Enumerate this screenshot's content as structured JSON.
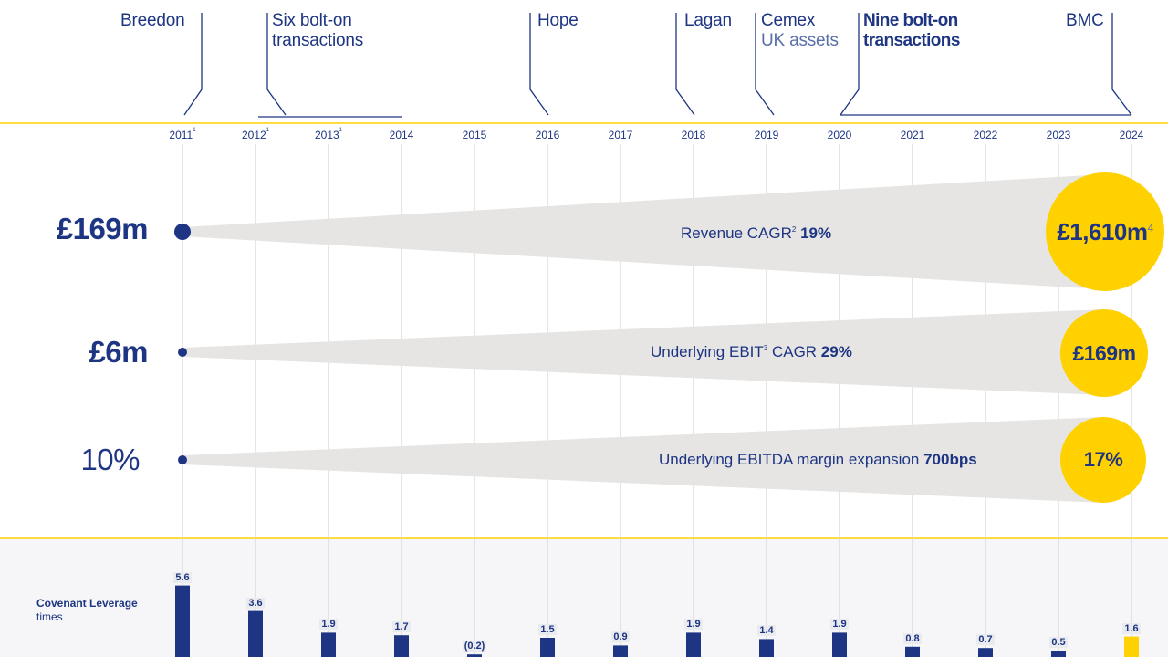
{
  "milestones": [
    {
      "title": "Breedon",
      "sub": ""
    },
    {
      "title": "Six bolt-on transactions",
      "sub": ""
    },
    {
      "title": "Hope",
      "sub": ""
    },
    {
      "title": "Lagan",
      "sub": ""
    },
    {
      "title": "Cemex",
      "sub": "UK assets"
    },
    {
      "title": "Nine bolt-on transactions",
      "sub": ""
    },
    {
      "title": "BMC",
      "sub": ""
    }
  ],
  "milestone_lines": {
    "six_l1": "Six bolt-on",
    "six_l2": "transactions",
    "nine_l1": "Nine bolt-on",
    "nine_l2": "transactions"
  },
  "years": [
    {
      "label": "2011",
      "note": "1"
    },
    {
      "label": "2012",
      "note": "1"
    },
    {
      "label": "2013",
      "note": "1"
    },
    {
      "label": "2014",
      "note": ""
    },
    {
      "label": "2015",
      "note": ""
    },
    {
      "label": "2016",
      "note": ""
    },
    {
      "label": "2017",
      "note": ""
    },
    {
      "label": "2018",
      "note": ""
    },
    {
      "label": "2019",
      "note": ""
    },
    {
      "label": "2020",
      "note": ""
    },
    {
      "label": "2021",
      "note": ""
    },
    {
      "label": "2022",
      "note": ""
    },
    {
      "label": "2023",
      "note": ""
    },
    {
      "label": "2024",
      "note": ""
    }
  ],
  "metrics": {
    "revenue": {
      "start": "£169m",
      "caption_pre": "Revenue CAGR",
      "caption_note": "2",
      "caption_value": "19%",
      "end": "£1,610m",
      "end_note": "4"
    },
    "ebit": {
      "start": "£6m",
      "caption_pre": "Underlying EBIT",
      "caption_note": "3",
      "caption_mid": " CAGR ",
      "caption_value": "29%",
      "end": "£169m"
    },
    "margin": {
      "start": "10%",
      "caption_pre": "Underlying EBITDA margin expansion ",
      "caption_value": "700bps",
      "end": "17%"
    }
  },
  "leverage": {
    "title": "Covenant Leverage",
    "unit": "times"
  },
  "colors": {
    "navy": "#1d3583",
    "yellow": "#ffd100",
    "wedge": "#e6e5e3",
    "grid": "#d4d4d4",
    "band": "#f6f6f8"
  },
  "chart_data": {
    "type": "bar",
    "categories": [
      "2011",
      "2012",
      "2013",
      "2014",
      "2015",
      "2016",
      "2017",
      "2018",
      "2019",
      "2020",
      "2021",
      "2022",
      "2023",
      "2024"
    ],
    "values": [
      5.6,
      3.6,
      1.9,
      1.7,
      -0.2,
      1.5,
      0.9,
      1.9,
      1.4,
      1.9,
      0.8,
      0.7,
      0.5,
      1.6
    ],
    "value_labels": [
      "5.6",
      "3.6",
      "1.9",
      "1.7",
      "(0.2)",
      "1.5",
      "0.9",
      "1.9",
      "1.4",
      "1.9",
      "0.8",
      "0.7",
      "0.5",
      "1.6"
    ],
    "highlight_category": "2024",
    "title": "Covenant Leverage",
    "ylabel": "times",
    "xlabel": ""
  }
}
